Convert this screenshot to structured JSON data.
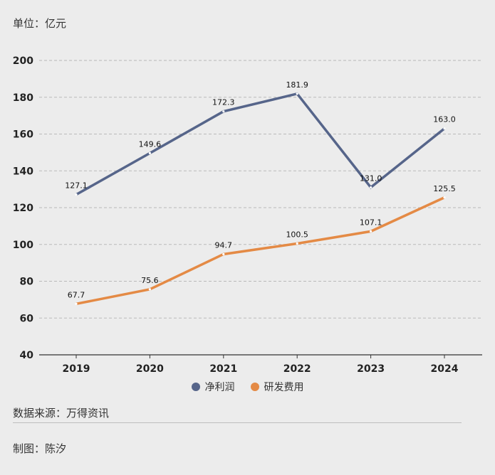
{
  "header": {
    "unit_label": "单位：亿元"
  },
  "chart_data": {
    "type": "line",
    "categories": [
      "2019",
      "2020",
      "2021",
      "2022",
      "2023",
      "2024"
    ],
    "ylim": [
      40,
      200
    ],
    "yticks": [
      40,
      60,
      80,
      100,
      120,
      140,
      160,
      180,
      200
    ],
    "grid": true,
    "legend_position": "bottom-center",
    "series": [
      {
        "name": "净利润",
        "color": "#56658a",
        "values": [
          127.1,
          149.6,
          172.3,
          181.9,
          131.0,
          163.0
        ]
      },
      {
        "name": "研发费用",
        "color": "#e48a45",
        "values": [
          67.7,
          75.6,
          94.7,
          100.5,
          107.1,
          125.5
        ]
      }
    ]
  },
  "footer": {
    "source": "数据来源：万得资讯",
    "credit": "制图：陈汐"
  }
}
